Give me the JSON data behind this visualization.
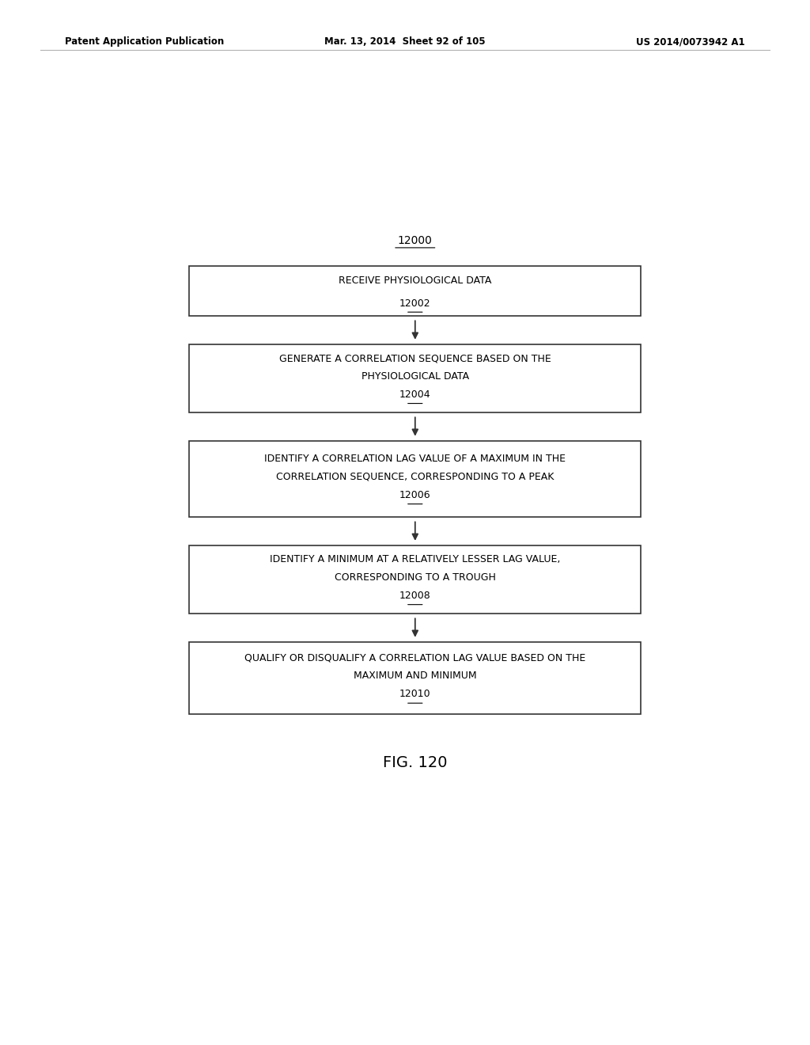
{
  "header_left": "Patent Application Publication",
  "header_mid": "Mar. 13, 2014  Sheet 92 of 105",
  "header_right": "US 2014/0073942 A1",
  "top_label": "12000",
  "boxes": [
    {
      "label": "12002",
      "lines": [
        "RECEIVE PHYSIOLOGICAL DATA"
      ]
    },
    {
      "label": "12004",
      "lines": [
        "GENERATE A CORRELATION SEQUENCE BASED ON THE",
        "PHYSIOLOGICAL DATA"
      ]
    },
    {
      "label": "12006",
      "lines": [
        "IDENTIFY A CORRELATION LAG VALUE OF A MAXIMUM IN THE",
        "CORRELATION SEQUENCE, CORRESPONDING TO A PEAK"
      ]
    },
    {
      "label": "12008",
      "lines": [
        "IDENTIFY A MINIMUM AT A RELATIVELY LESSER LAG VALUE,",
        "CORRESPONDING TO A TROUGH"
      ]
    },
    {
      "label": "12010",
      "lines": [
        "QUALIFY OR DISQUALIFY A CORRELATION LAG VALUE BASED ON THE",
        "MAXIMUM AND MINIMUM"
      ]
    }
  ],
  "fig_label": "FIG. 120",
  "bg_color": "#ffffff",
  "box_edge_color": "#333333",
  "text_color": "#000000",
  "arrow_color": "#333333"
}
